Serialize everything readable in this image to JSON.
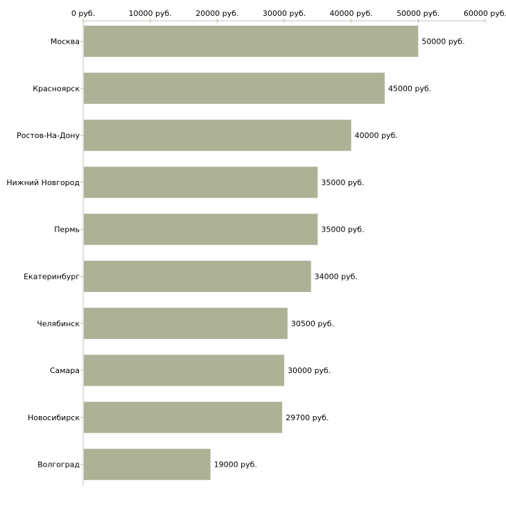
{
  "chart_data": {
    "type": "bar",
    "orientation": "horizontal",
    "title": "",
    "xlabel": "",
    "ylabel": "",
    "xlim": [
      0,
      60000
    ],
    "unit_suffix": " руб.",
    "x_ticks": [
      0,
      10000,
      20000,
      30000,
      40000,
      50000,
      60000
    ],
    "x_tick_labels": [
      "0 руб.",
      "10000 руб.",
      "20000 руб.",
      "30000 руб.",
      "40000 руб.",
      "50000 руб.",
      "60000 руб."
    ],
    "categories": [
      "Москва",
      "Красноярск",
      "Ростов-На-Дону",
      "Нижний Новгород",
      "Пермь",
      "Екатеринбург",
      "Челябинск",
      "Самара",
      "Новосибирск",
      "Волгоград"
    ],
    "values": [
      50000,
      45000,
      40000,
      35000,
      35000,
      34000,
      30500,
      30000,
      29700,
      19000
    ],
    "data_labels": [
      "50000 руб.",
      "45000 руб.",
      "40000 руб.",
      "35000 руб.",
      "35000 руб.",
      "34000 руб.",
      "30500 руб.",
      "30000 руб.",
      "29700 руб.",
      "19000 руб."
    ],
    "grid": false,
    "legend": "none",
    "colors": {
      "bar": "#adb296",
      "axis": "#c0c0c0",
      "tick": "#b5b98f"
    }
  }
}
